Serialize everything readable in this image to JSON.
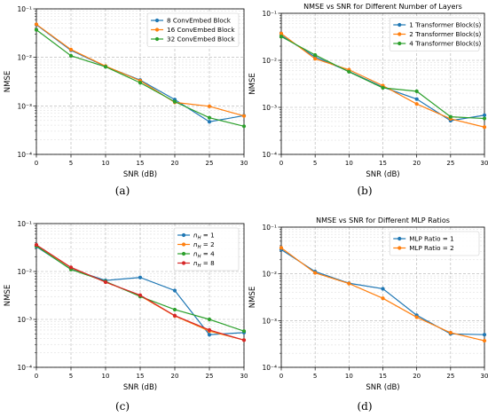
{
  "chart_data": [
    {
      "type": "line",
      "caption": "(a)",
      "title": "",
      "xlabel": "SNR (dB)",
      "ylabel": "NMSE",
      "yscale": "log",
      "xlim": [
        0,
        30
      ],
      "ylim": [
        0.0001,
        0.1
      ],
      "x": [
        0,
        5,
        10,
        15,
        20,
        25,
        30
      ],
      "xticks": [
        "0",
        "5",
        "10",
        "15",
        "20",
        "25",
        "30"
      ],
      "grid": true,
      "legend": "top-right",
      "series": [
        {
          "name": "8 ConvEmbed Block",
          "color": "#1f77b4",
          "values": [
            0.047,
            0.014,
            0.0065,
            0.0034,
            0.00135,
            0.00047,
            0.00063
          ]
        },
        {
          "name": "16 ConvEmbed Block",
          "color": "#ff7f0e",
          "values": [
            0.048,
            0.0145,
            0.0066,
            0.0033,
            0.00118,
            0.00098,
            0.00062
          ]
        },
        {
          "name": "32 ConvEmbed Block",
          "color": "#2ca02c",
          "values": [
            0.037,
            0.0108,
            0.0064,
            0.003,
            0.00122,
            0.00057,
            0.00038
          ]
        }
      ]
    },
    {
      "type": "line",
      "caption": "(b)",
      "title": "NMSE vs SNR for Different Number of Layers",
      "xlabel": "SNR (dB)",
      "ylabel": "NMSE",
      "yscale": "log",
      "xlim": [
        0,
        30
      ],
      "ylim": [
        0.0001,
        0.1
      ],
      "x": [
        0,
        5,
        10,
        15,
        20,
        25,
        30
      ],
      "xticks": [
        "0",
        "5",
        "10",
        "15",
        "20",
        "25",
        "30"
      ],
      "grid": true,
      "legend": "top-right",
      "series": [
        {
          "name": "1 Transformer Block(s)",
          "color": "#1f77b4",
          "values": [
            0.034,
            0.0118,
            0.0058,
            0.0027,
            0.0015,
            0.00052,
            0.00068
          ]
        },
        {
          "name": "2 Transformer Block(s)",
          "color": "#ff7f0e",
          "values": [
            0.037,
            0.0108,
            0.0063,
            0.0029,
            0.00118,
            0.00057,
            0.00038
          ]
        },
        {
          "name": "4 Transformer Block(s)",
          "color": "#2ca02c",
          "values": [
            0.032,
            0.013,
            0.0057,
            0.0026,
            0.0022,
            0.00063,
            0.00058
          ]
        }
      ]
    },
    {
      "type": "line",
      "caption": "(c)",
      "title": "",
      "xlabel": "SNR (dB)",
      "ylabel": "NMSE",
      "yscale": "log",
      "xlim": [
        0,
        30
      ],
      "ylim": [
        0.0001,
        0.1
      ],
      "x": [
        0,
        5,
        10,
        15,
        20,
        25,
        30
      ],
      "xticks": [
        "0",
        "5",
        "10",
        "15",
        "20",
        "25",
        "30"
      ],
      "grid": true,
      "legend": "top-right",
      "series": [
        {
          "name": "n_H = 1",
          "label_base": "n",
          "label_sub": "H",
          "label_rest": " = 1",
          "color": "#1f77b4",
          "values": [
            0.033,
            0.0112,
            0.0065,
            0.0075,
            0.004,
            0.00048,
            0.00053
          ]
        },
        {
          "name": "n_H = 2",
          "label_base": "n",
          "label_sub": "H",
          "label_rest": " = 2",
          "color": "#ff7f0e",
          "values": [
            0.035,
            0.012,
            0.006,
            0.0031,
            0.00118,
            0.00057,
            0.00037
          ]
        },
        {
          "name": "n_H = 4",
          "label_base": "n",
          "label_sub": "H",
          "label_rest": " = 4",
          "color": "#2ca02c",
          "values": [
            0.034,
            0.011,
            0.0062,
            0.003,
            0.0016,
            0.001,
            0.00057
          ]
        },
        {
          "name": "n_H = 8",
          "label_base": "n",
          "label_sub": "H",
          "label_rest": " = 8",
          "color": "#d62728",
          "values": [
            0.036,
            0.0122,
            0.006,
            0.0032,
            0.0012,
            0.0006,
            0.00037
          ]
        }
      ]
    },
    {
      "type": "line",
      "caption": "(d)",
      "title": "NMSE vs SNR for Different MLP Ratios",
      "xlabel": "SNR (dB)",
      "ylabel": "NMSE",
      "yscale": "log",
      "xlim": [
        0,
        30
      ],
      "ylim": [
        0.0001,
        0.1
      ],
      "x": [
        0,
        5,
        10,
        15,
        20,
        25,
        30
      ],
      "xticks": [
        "0",
        "5",
        "10",
        "15",
        "20",
        "25",
        "30"
      ],
      "grid": true,
      "legend": "top-right",
      "series": [
        {
          "name": "MLP Ratio = 1",
          "color": "#1f77b4",
          "values": [
            0.033,
            0.0112,
            0.0063,
            0.0048,
            0.0013,
            0.00052,
            0.0005
          ]
        },
        {
          "name": "MLP Ratio = 2",
          "color": "#ff7f0e",
          "values": [
            0.036,
            0.0105,
            0.0062,
            0.003,
            0.00118,
            0.00055,
            0.00037
          ]
        }
      ]
    }
  ]
}
